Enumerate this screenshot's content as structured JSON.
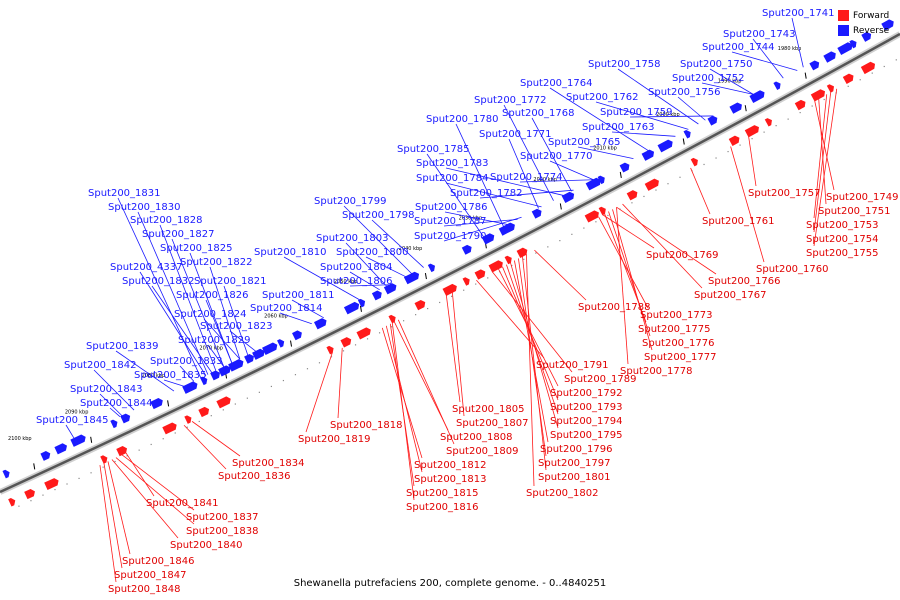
{
  "legend": [
    {
      "label": "Forward",
      "color": "#ff1a1a"
    },
    {
      "label": "Reverse",
      "color": "#1a1aff"
    }
  ],
  "caption": "Shewanella putrefaciens 200, complete genome. - 0..4840251",
  "colors": {
    "forward": "#ff1a1a",
    "reverse": "#1a1aff",
    "backbone": "#555555"
  },
  "ticks": [
    "2100 kbp",
    "2090 kbp",
    "2080 kbp",
    "2070 kbp",
    "2060 kbp",
    "2050 kbp",
    "2040 kbp",
    "2030 kbp",
    "2020 kbp",
    "2010 kbp",
    "2000 kbp",
    "1990 kbp",
    "1980 kbp"
  ],
  "reverse_labels": [
    "Sput200_1741",
    "Sput200_1743",
    "Sput200_1744",
    "Sput200_1750",
    "Sput200_1752",
    "Sput200_1758",
    "Sput200_1756",
    "Sput200_1764",
    "Sput200_1762",
    "Sput200_1759",
    "Sput200_1772",
    "Sput200_1768",
    "Sput200_1763",
    "Sput200_1780",
    "Sput200_1771",
    "Sput200_1765",
    "Sput200_1785",
    "Sput200_1770",
    "Sput200_1783",
    "Sput200_1784",
    "Sput200_1774",
    "Sput200_1782",
    "Sput200_1831",
    "Sput200_1830",
    "Sput200_1828",
    "Sput200_1827",
    "Sput200_1825",
    "Sput200_1822",
    "Sput200_4337",
    "Sput200_1832",
    "Sput200_1821",
    "Sput200_1826",
    "Sput200_1824",
    "Sput200_1823",
    "Sput200_1829",
    "Sput200_1839",
    "Sput200_1833",
    "Sput200_1842",
    "Sput200_1835",
    "Sput200_1843",
    "Sput200_1844",
    "Sput200_1845",
    "Sput200_1799",
    "Sput200_1798",
    "Sput200_1786",
    "Sput200_1787",
    "Sput200_1790",
    "Sput200_1803",
    "Sput200_1810",
    "Sput200_1800",
    "Sput200_1804",
    "Sput200_1806",
    "Sput200_1811",
    "Sput200_1814"
  ],
  "forward_labels": [
    "Sput200_1757",
    "Sput200_1749",
    "Sput200_1751",
    "Sput200_1753",
    "Sput200_1754",
    "Sput200_1755",
    "Sput200_1761",
    "Sput200_1760",
    "Sput200_1769",
    "Sput200_1766",
    "Sput200_1767",
    "Sput200_1788",
    "Sput200_1773",
    "Sput200_1775",
    "Sput200_1776",
    "Sput200_1777",
    "Sput200_1778",
    "Sput200_1791",
    "Sput200_1789",
    "Sput200_1792",
    "Sput200_1793",
    "Sput200_1794",
    "Sput200_1795",
    "Sput200_1796",
    "Sput200_1797",
    "Sput200_1801",
    "Sput200_1802",
    "Sput200_1805",
    "Sput200_1807",
    "Sput200_1808",
    "Sput200_1809",
    "Sput200_1812",
    "Sput200_1813",
    "Sput200_1815",
    "Sput200_1816",
    "Sput200_1818",
    "Sput200_1819",
    "Sput200_1834",
    "Sput200_1836",
    "Sput200_1841",
    "Sput200_1837",
    "Sput200_1838",
    "Sput200_1840",
    "Sput200_1846",
    "Sput200_1847",
    "Sput200_1848"
  ]
}
